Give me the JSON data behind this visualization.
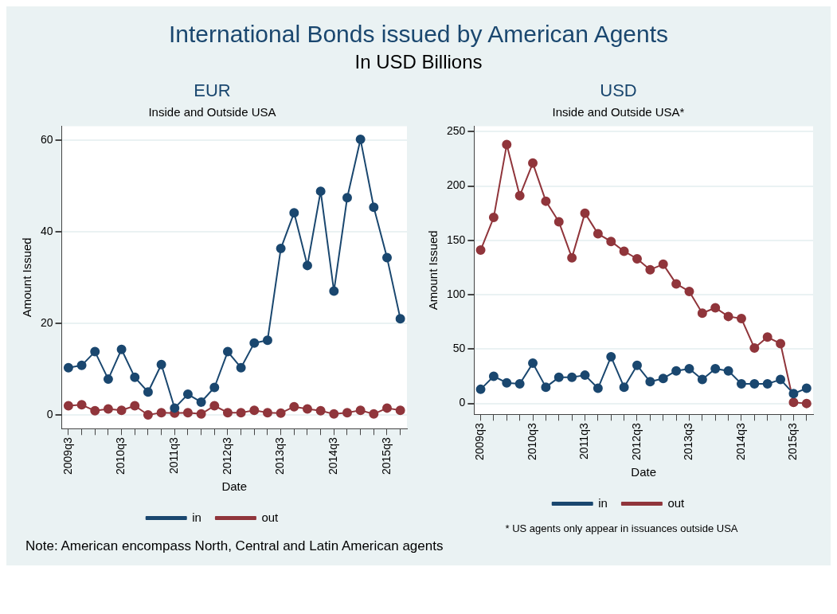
{
  "chart_data": [
    {
      "type": "other",
      "title": "International Bonds issued by American Agents",
      "subtitle": "In USD Billions",
      "annotations": [
        "Note: American encompass North, Central and Latin American agents"
      ]
    },
    {
      "type": "line",
      "title": "EUR",
      "subtitle": "Inside and Outside USA",
      "xlabel": "Date",
      "ylabel": "Amount Issued",
      "categories": [
        "2009q3",
        null,
        null,
        null,
        "2010q3",
        null,
        null,
        null,
        "2011q3",
        null,
        null,
        null,
        "2012q3",
        null,
        null,
        null,
        "2013q3",
        null,
        null,
        null,
        "2014q3",
        null,
        null,
        null,
        "2015q3",
        null
      ],
      "series": [
        {
          "name": "in",
          "color": "#1a476f",
          "values": [
            10.3,
            10.8,
            13.8,
            7.8,
            14.3,
            8.2,
            5.0,
            11.0,
            1.5,
            4.5,
            2.8,
            6.0,
            13.8,
            10.3,
            15.7,
            16.3,
            36.3,
            44.1,
            32.6,
            48.8,
            27.0,
            47.4,
            60.1,
            45.3,
            34.3,
            21.0
          ]
        },
        {
          "name": "out",
          "color": "#90353b",
          "values": [
            2.0,
            2.2,
            0.9,
            1.3,
            1.0,
            2.0,
            0,
            0.5,
            0.4,
            0.5,
            0.2,
            2.0,
            0.5,
            0.5,
            1.0,
            0.5,
            0.4,
            1.8,
            1.3,
            0.9,
            0.2,
            0.5,
            1.0,
            0.2,
            1.5,
            1.0
          ]
        }
      ],
      "ylim": [
        -3,
        63
      ],
      "yticks": [
        0,
        20,
        40,
        60
      ],
      "grid": "y",
      "legend": "bottom",
      "marker": "circle",
      "line_style": "solid"
    },
    {
      "type": "line",
      "title": "USD",
      "subtitle": "Inside and Outside USA*",
      "xlabel": "Date",
      "ylabel": "Amount Issued",
      "categories": [
        "2009q3",
        null,
        null,
        null,
        "2010q3",
        null,
        null,
        null,
        "2011q3",
        null,
        null,
        null,
        "2012q3",
        null,
        null,
        null,
        "2013q3",
        null,
        null,
        null,
        "2014q3",
        null,
        null,
        null,
        "2015q3",
        null
      ],
      "series": [
        {
          "name": "in",
          "color": "#1a476f",
          "values": [
            13,
            25,
            19,
            18,
            37,
            15,
            24,
            24,
            26,
            14,
            43,
            15,
            35,
            20,
            23,
            30,
            32,
            22,
            32,
            30,
            18,
            18,
            18,
            22,
            9,
            14
          ]
        },
        {
          "name": "out",
          "color": "#90353b",
          "values": [
            141,
            171,
            238,
            191,
            221,
            186,
            167,
            134,
            175,
            156,
            149,
            140,
            133,
            123,
            128,
            110,
            103,
            83,
            88,
            80,
            78,
            51,
            61,
            55,
            1,
            0
          ]
        }
      ],
      "ylim": [
        -10,
        255
      ],
      "yticks": [
        0,
        50,
        100,
        150,
        200,
        250
      ],
      "grid": "y",
      "legend": "bottom",
      "marker": "circle",
      "line_style": "solid",
      "annotations": [
        "* US agents only appear in issuances outside USA"
      ]
    }
  ]
}
